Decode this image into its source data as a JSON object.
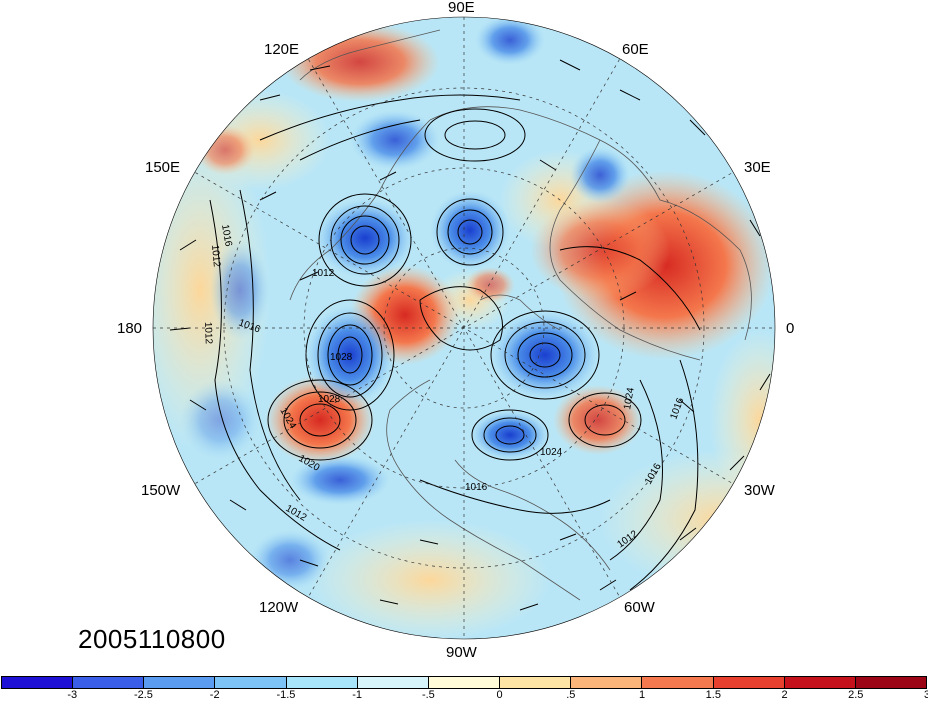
{
  "timestamp": "2005110800",
  "longitude_labels": [
    {
      "key": "lon-90e",
      "text": "90E"
    },
    {
      "key": "lon-60e",
      "text": "60E"
    },
    {
      "key": "lon-120e",
      "text": "120E"
    },
    {
      "key": "lon-150e",
      "text": "150E"
    },
    {
      "key": "lon-30e",
      "text": "30E"
    },
    {
      "key": "lon-180",
      "text": "180"
    },
    {
      "key": "lon-0",
      "text": "0"
    },
    {
      "key": "lon-150w",
      "text": "150W"
    },
    {
      "key": "lon-30w",
      "text": "30W"
    },
    {
      "key": "lon-120w",
      "text": "120W"
    },
    {
      "key": "lon-60w",
      "text": "60W"
    },
    {
      "key": "lon-90w",
      "text": "90W"
    }
  ],
  "contour_labels": [
    "1016",
    "1012",
    "1012",
    "1016",
    "1012",
    "1024",
    "1028",
    "1020",
    "1012",
    "1024",
    "1016",
    "1016",
    "1012",
    "1024",
    "1028",
    "1016"
  ],
  "colorbar": {
    "colors": [
      "#1f10d6",
      "#3a5ee8",
      "#5b9cf0",
      "#7ec3f5",
      "#a8e4fa",
      "#d8f4fb",
      "#fffbd9",
      "#fde3a4",
      "#fbb57a",
      "#f5794e",
      "#e8402f",
      "#c4111b",
      "#9c0515"
    ],
    "tick_labels": [
      "-3",
      "-2.5",
      "-2",
      "-1.5",
      "-1",
      "-.5",
      "0",
      ".5",
      "1",
      "1.5",
      "2",
      "2.5",
      "3"
    ]
  },
  "map": {
    "background_color": "#b9e6f6",
    "warm_anomaly_color": "#ee5a3c",
    "cold_anomaly_color": "#3f7fe0",
    "contour_color": "#000000",
    "continent_outline_color": "#555555"
  }
}
